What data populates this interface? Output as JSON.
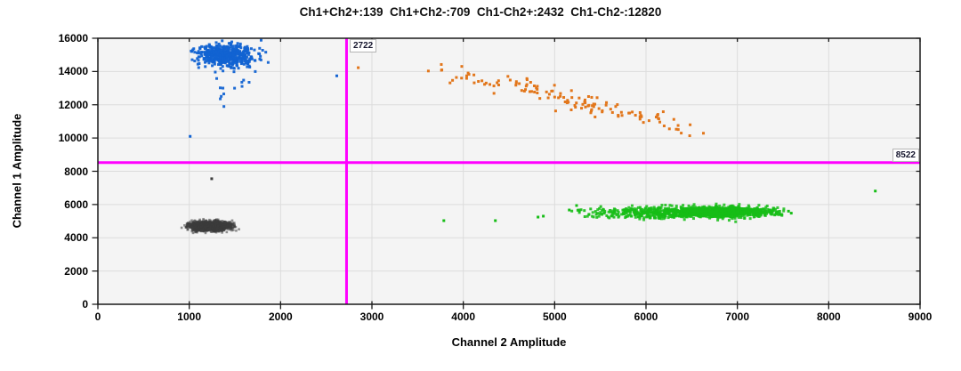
{
  "chart_data": {
    "type": "scatter",
    "title": "Ch1+Ch2+:139  Ch1+Ch2-:709  Ch1-Ch2+:2432  Ch1-Ch2-:12820",
    "title_segments": [
      "Ch1+Ch2+:139",
      "Ch1+Ch2-:709",
      "Ch1-Ch2+:2432",
      "Ch1-Ch2-:12820"
    ],
    "quadrant_counts": {
      "ch1pos_ch2pos": 139,
      "ch1pos_ch2neg": 709,
      "ch1neg_ch2pos": 2432,
      "ch1neg_ch2neg": 12820
    },
    "xlabel": "Channel 2 Amplitude",
    "ylabel": "Channel 1 Amplitude",
    "xlim": [
      0,
      9000
    ],
    "ylim": [
      0,
      16000
    ],
    "xticks": [
      0,
      1000,
      2000,
      3000,
      4000,
      5000,
      6000,
      7000,
      8000,
      9000
    ],
    "yticks": [
      0,
      2000,
      4000,
      6000,
      8000,
      10000,
      12000,
      14000,
      16000
    ],
    "grid": true,
    "plot_bg_color": "#f4f4f4",
    "grid_color": "#dcdcdc",
    "axis_color": "#1a1a1a",
    "thresholds": {
      "color": "#ff00ff",
      "x_value": 2722,
      "x_label": "2722",
      "y_value": 8522,
      "y_label": "8522"
    },
    "clusters": [
      {
        "name": "ch1pos-ch2neg-main",
        "quadrant": "Ch1+Ch2-",
        "count": 709,
        "color": "#1263d2",
        "dist": "gaussian",
        "render_count": 520,
        "cx": 1400,
        "cy": 14950,
        "sx": 160,
        "sy": 320,
        "clamp_x": [
          1020,
          1870
        ],
        "clamp_y": [
          13850,
          15930
        ],
        "size": 3,
        "alpha": 0.95
      },
      {
        "name": "ch1pos-ch2neg-rain",
        "quadrant": "Ch1+Ch2-",
        "color": "#1263d2",
        "dist": "gaussian",
        "render_count": 14,
        "cx": 1430,
        "cy": 13100,
        "sx": 150,
        "sy": 600,
        "size": 3,
        "alpha": 0.95
      },
      {
        "name": "ch1pos-ch2pos-band",
        "quadrant": "Ch1+Ch2+",
        "count": 139,
        "color": "#e2761b",
        "dist": "band",
        "render_count": 132,
        "x_range": [
          3450,
          6980
        ],
        "y_start": 14400,
        "slope": -1.25,
        "noise": 300,
        "size": 3,
        "alpha": 1
      },
      {
        "name": "ch1neg-ch2pos-dense",
        "quadrant": "Ch1-Ch2+",
        "count": 2432,
        "color": "#16bd16",
        "dist": "gaussian",
        "render_count": 1150,
        "cx": 6800,
        "cy": 5560,
        "sx": 320,
        "sy": 150,
        "clamp_x": [
          5900,
          7530
        ],
        "size": 3,
        "alpha": 0.85
      },
      {
        "name": "ch1neg-ch2pos-mid",
        "quadrant": "Ch1-Ch2+",
        "color": "#16bd16",
        "dist": "gaussian",
        "render_count": 300,
        "cx": 6050,
        "cy": 5510,
        "sx": 330,
        "sy": 165,
        "clamp_x": [
          5250,
          6900
        ],
        "size": 3,
        "alpha": 0.85
      },
      {
        "name": "ch1neg-ch2pos-sparse",
        "quadrant": "Ch1-Ch2+",
        "color": "#16bd16",
        "dist": "uniform",
        "render_count": 26,
        "x_range": [
          5080,
          5980
        ],
        "y_range": [
          5150,
          5880
        ],
        "size": 3,
        "alpha": 0.9
      },
      {
        "name": "ch1neg-ch2neg",
        "quadrant": "Ch1-Ch2-",
        "count": 12820,
        "color": "#3d3d3d",
        "dist": "gaussian",
        "render_count": 1700,
        "cx": 1230,
        "cy": 4700,
        "sx": 108,
        "sy": 140,
        "clamp_x": [
          905,
          1575
        ],
        "clamp_y": [
          4250,
          5180
        ],
        "size": 2.6,
        "alpha": 0.55
      }
    ],
    "outlier_points": [
      {
        "x": 1010,
        "y": 10100,
        "color": "#1263d2"
      },
      {
        "x": 2615,
        "y": 13740,
        "color": "#1263d2"
      },
      {
        "x": 2850,
        "y": 14230,
        "color": "#e2761b"
      },
      {
        "x": 1246,
        "y": 7550,
        "color": "#3d3d3d"
      },
      {
        "x": 3787,
        "y": 5030,
        "color": "#16bd16"
      },
      {
        "x": 4351,
        "y": 5030,
        "color": "#16bd16"
      },
      {
        "x": 4818,
        "y": 5244,
        "color": "#16bd16"
      },
      {
        "x": 4876,
        "y": 5300,
        "color": "#16bd16"
      },
      {
        "x": 5160,
        "y": 5670,
        "color": "#16bd16"
      },
      {
        "x": 5240,
        "y": 5940,
        "color": "#16bd16"
      },
      {
        "x": 7560,
        "y": 5600,
        "color": "#16bd16"
      },
      {
        "x": 7590,
        "y": 5480,
        "color": "#16bd16"
      },
      {
        "x": 8510,
        "y": 6810,
        "color": "#16bd16"
      }
    ]
  }
}
